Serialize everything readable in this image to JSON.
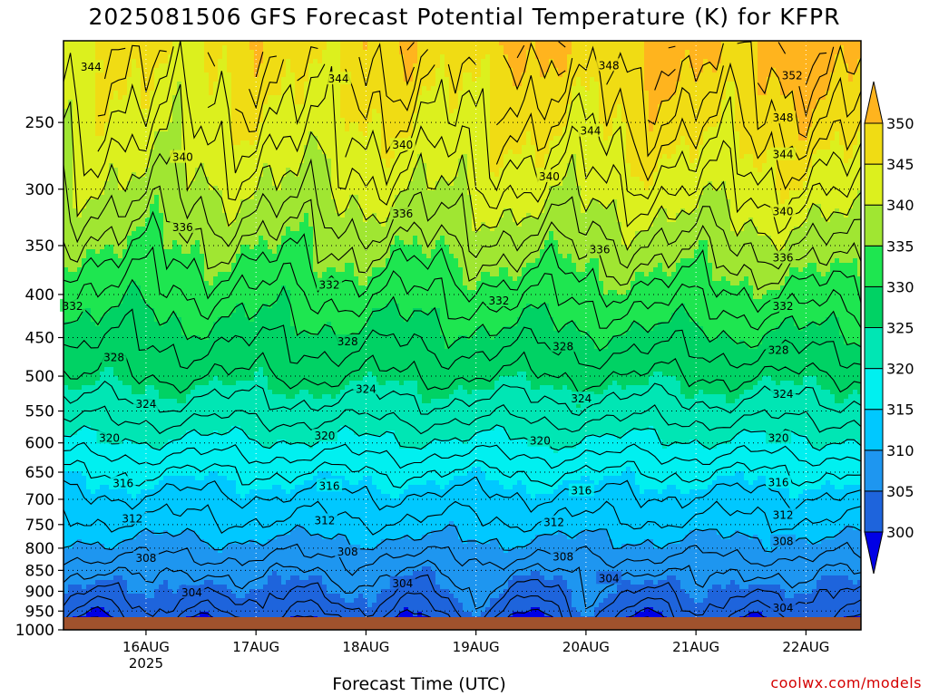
{
  "title": "2025081506 GFS Forecast Potential Temperature (K) for KFPR",
  "credit": "coolwx.com/models",
  "chart_data": {
    "type": "heatmap",
    "title": "2025081506 GFS Forecast Potential Temperature (K) for KFPR",
    "xlabel": "Forecast Time (UTC)",
    "ylabel": "",
    "y_scale": "log",
    "y_inverted": true,
    "ylim": [
      1000,
      200
    ],
    "xlim": [
      -18,
      156
    ],
    "y_ticks": [
      250,
      300,
      350,
      400,
      450,
      500,
      550,
      600,
      650,
      700,
      750,
      800,
      850,
      900,
      950,
      1000
    ],
    "x_ticks": [
      {
        "label": "16AUG",
        "sub": "2025",
        "hour": 0
      },
      {
        "label": "17AUG",
        "sub": "",
        "hour": 24
      },
      {
        "label": "18AUG",
        "sub": "",
        "hour": 48
      },
      {
        "label": "19AUG",
        "sub": "",
        "hour": 72
      },
      {
        "label": "20AUG",
        "sub": "",
        "hour": 96
      },
      {
        "label": "21AUG",
        "sub": "",
        "hour": 120
      },
      {
        "label": "22AUG",
        "sub": "",
        "hour": 144
      }
    ],
    "contour_interval": 2,
    "grid": "dotted",
    "colorbar": {
      "placement": "right",
      "levels": [
        300,
        305,
        310,
        315,
        320,
        325,
        330,
        335,
        340,
        345,
        350
      ],
      "colors": [
        "#0000e6",
        "#1e64dc",
        "#1e96f0",
        "#00c8ff",
        "#00f0f0",
        "#00e6b4",
        "#00d264",
        "#1ee650",
        "#a0e632",
        "#dcf01e",
        "#f0dc14",
        "#ffb41e"
      ]
    },
    "profile": [
      {
        "p": 1000,
        "theta": 299.0
      },
      {
        "p": 975,
        "theta": 301.0
      },
      {
        "p": 950,
        "theta": 302.5
      },
      {
        "p": 925,
        "theta": 303.5
      },
      {
        "p": 900,
        "theta": 304.5
      },
      {
        "p": 850,
        "theta": 306.5
      },
      {
        "p": 800,
        "theta": 309.0
      },
      {
        "p": 750,
        "theta": 311.5
      },
      {
        "p": 700,
        "theta": 313.5
      },
      {
        "p": 650,
        "theta": 316.0
      },
      {
        "p": 600,
        "theta": 319.5
      },
      {
        "p": 550,
        "theta": 323.0
      },
      {
        "p": 500,
        "theta": 326.0
      },
      {
        "p": 450,
        "theta": 328.5
      },
      {
        "p": 400,
        "theta": 331.5
      },
      {
        "p": 350,
        "theta": 335.0
      },
      {
        "p": 300,
        "theta": 339.0
      },
      {
        "p": 250,
        "theta": 342.5
      },
      {
        "p": 200,
        "theta": 346.0
      }
    ],
    "upper_trend_K_per_day": 1.0,
    "contour_labels": [
      {
        "value": "344",
        "hour": -12,
        "p": 215
      },
      {
        "value": "344",
        "hour": 42,
        "p": 222
      },
      {
        "value": "348",
        "hour": 101,
        "p": 214
      },
      {
        "value": "352",
        "hour": 141,
        "p": 220
      },
      {
        "value": "340",
        "hour": 8,
        "p": 275
      },
      {
        "value": "340",
        "hour": 56,
        "p": 266
      },
      {
        "value": "344",
        "hour": 97,
        "p": 256
      },
      {
        "value": "348",
        "hour": 139,
        "p": 247
      },
      {
        "value": "344",
        "hour": 139,
        "p": 273
      },
      {
        "value": "340",
        "hour": 88,
        "p": 290
      },
      {
        "value": "340",
        "hour": 139,
        "p": 319
      },
      {
        "value": "336",
        "hour": 8,
        "p": 333
      },
      {
        "value": "336",
        "hour": 56,
        "p": 321
      },
      {
        "value": "336",
        "hour": 99,
        "p": 354
      },
      {
        "value": "336",
        "hour": 139,
        "p": 362
      },
      {
        "value": "332",
        "hour": -16,
        "p": 413
      },
      {
        "value": "332",
        "hour": 40,
        "p": 390
      },
      {
        "value": "332",
        "hour": 77,
        "p": 407
      },
      {
        "value": "332",
        "hour": 139,
        "p": 413
      },
      {
        "value": "328",
        "hour": -7,
        "p": 475
      },
      {
        "value": "328",
        "hour": 44,
        "p": 455
      },
      {
        "value": "328",
        "hour": 91,
        "p": 461
      },
      {
        "value": "328",
        "hour": 138,
        "p": 466
      },
      {
        "value": "324",
        "hour": 0,
        "p": 540
      },
      {
        "value": "324",
        "hour": 48,
        "p": 518
      },
      {
        "value": "324",
        "hour": 95,
        "p": 532
      },
      {
        "value": "324",
        "hour": 139,
        "p": 525
      },
      {
        "value": "320",
        "hour": -8,
        "p": 592
      },
      {
        "value": "320",
        "hour": 39,
        "p": 589
      },
      {
        "value": "320",
        "hour": 86,
        "p": 597
      },
      {
        "value": "320",
        "hour": 138,
        "p": 592
      },
      {
        "value": "316",
        "hour": -5,
        "p": 670
      },
      {
        "value": "316",
        "hour": 40,
        "p": 675
      },
      {
        "value": "316",
        "hour": 95,
        "p": 684
      },
      {
        "value": "316",
        "hour": 138,
        "p": 669
      },
      {
        "value": "312",
        "hour": -3,
        "p": 738
      },
      {
        "value": "312",
        "hour": 39,
        "p": 742
      },
      {
        "value": "312",
        "hour": 89,
        "p": 746
      },
      {
        "value": "312",
        "hour": 139,
        "p": 731
      },
      {
        "value": "308",
        "hour": 0,
        "p": 822
      },
      {
        "value": "308",
        "hour": 44,
        "p": 808
      },
      {
        "value": "308",
        "hour": 91,
        "p": 819
      },
      {
        "value": "308",
        "hour": 139,
        "p": 786
      },
      {
        "value": "304",
        "hour": 10,
        "p": 903
      },
      {
        "value": "304",
        "hour": 56,
        "p": 881
      },
      {
        "value": "304",
        "hour": 101,
        "p": 869
      },
      {
        "value": "304",
        "hour": 139,
        "p": 942
      }
    ]
  }
}
